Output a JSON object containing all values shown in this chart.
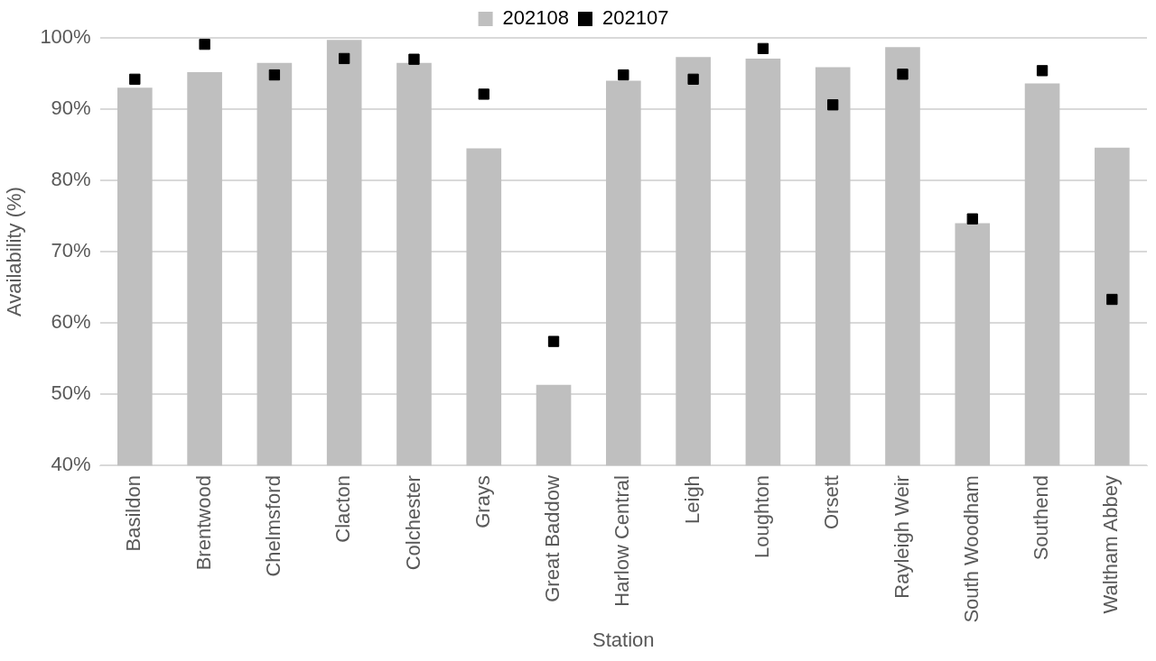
{
  "chart_data": {
    "type": "bar",
    "xlabel": "Station",
    "ylabel": "Availability (%)",
    "categories": [
      "Basildon",
      "Brentwood",
      "Chelmsford",
      "Clacton",
      "Colchester",
      "Grays",
      "Great Baddow",
      "Harlow Central",
      "Leigh",
      "Loughton",
      "Orsett",
      "Rayleigh Weir",
      "South Woodham",
      "Southend",
      "Waltham Abbey"
    ],
    "series": [
      {
        "name": "202108",
        "color": "#bfbfbf",
        "values": [
          93,
          95.2,
          96.5,
          99.7,
          96.5,
          84.5,
          51.3,
          94,
          97.3,
          97.1,
          95.9,
          98.7,
          74,
          93.6,
          84.6
        ]
      },
      {
        "name": "202107",
        "type": "scatter",
        "marker": "square",
        "color": "#000000",
        "values": [
          94.2,
          99.1,
          94.8,
          97.1,
          97,
          92.1,
          57.4,
          94.8,
          94.2,
          98.5,
          90.6,
          94.9,
          74.6,
          95.4,
          63.3
        ]
      }
    ],
    "ylim": [
      40,
      100
    ],
    "yticks": [
      {
        "value": 40,
        "label": "40%"
      },
      {
        "value": 50,
        "label": "50%"
      },
      {
        "value": 60,
        "label": "60%"
      },
      {
        "value": 70,
        "label": "70%"
      },
      {
        "value": 80,
        "label": "80%"
      },
      {
        "value": 90,
        "label": "90%"
      },
      {
        "value": 100,
        "label": "100%"
      }
    ],
    "grid": "y",
    "legend": "top"
  }
}
